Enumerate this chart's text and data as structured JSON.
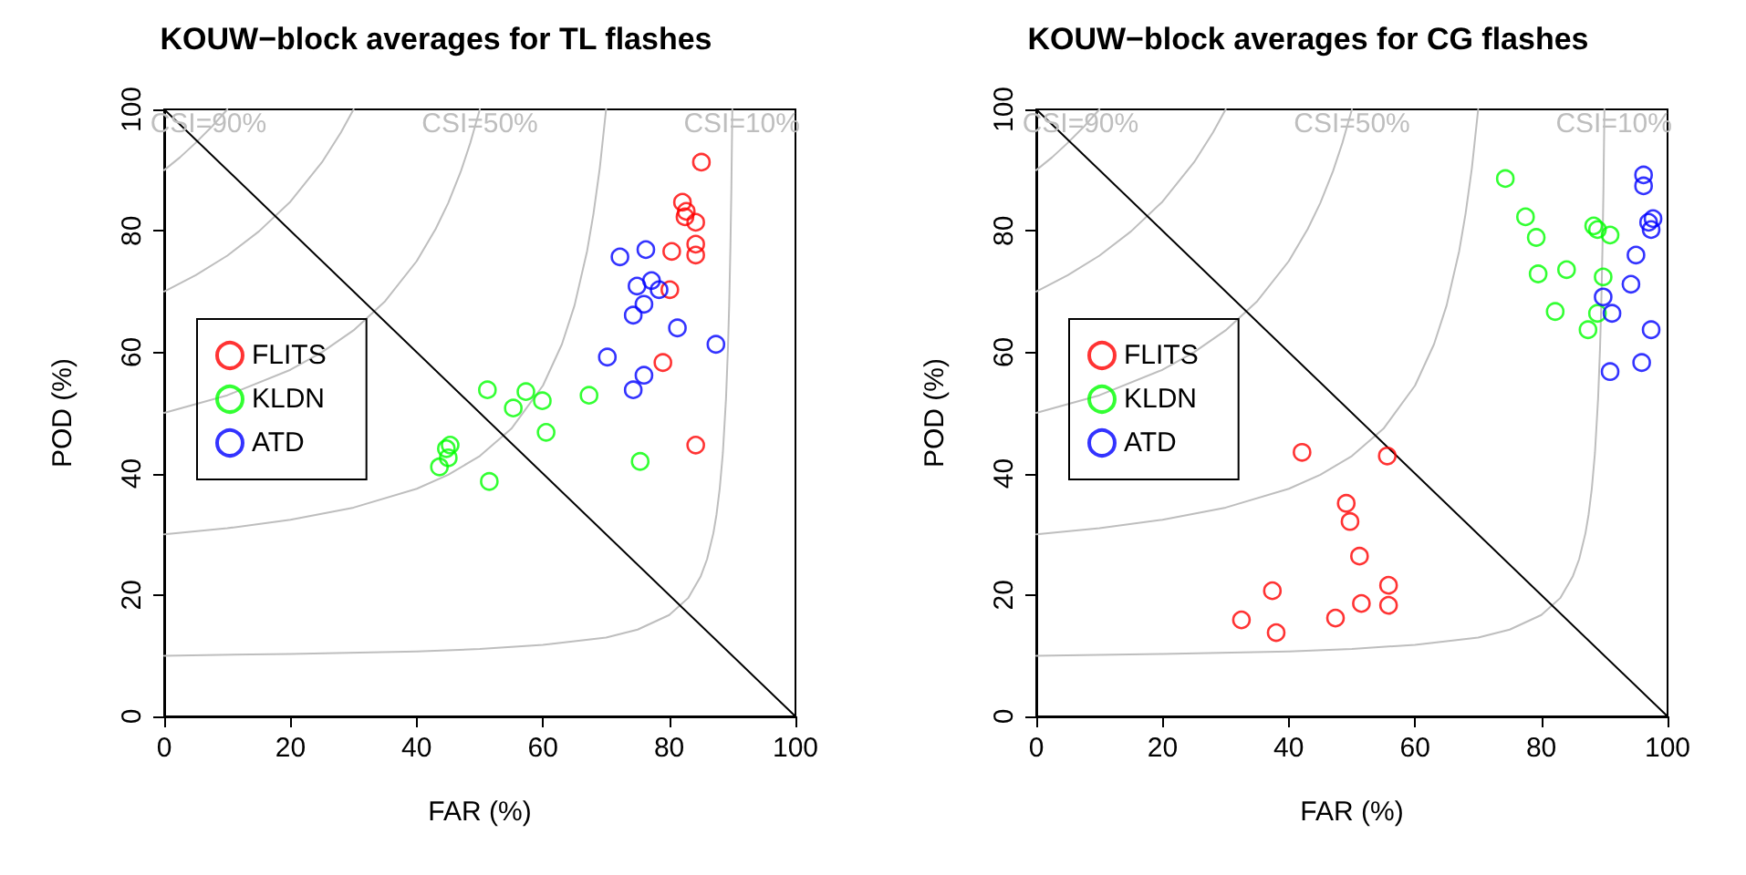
{
  "chart_data": [
    {
      "type": "scatter",
      "title": "KOUW−block averages for TL flashes",
      "xlabel": "FAR (%)",
      "ylabel": "POD (%)",
      "xlim": [
        0,
        100
      ],
      "ylim": [
        0,
        100
      ],
      "xticks": [
        0,
        20,
        40,
        60,
        80,
        100
      ],
      "yticks": [
        0,
        20,
        40,
        60,
        80,
        100
      ],
      "grid": false,
      "legend": "left",
      "marker": "circle",
      "annotations": [
        "CSI=90%",
        "CSI=50%",
        "CSI=10%"
      ],
      "series": [
        {
          "type": "line",
          "marker": "none",
          "color": "#bebebe",
          "x": [
            0,
            2.5,
            5,
            7.5,
            10
          ],
          "values": [
            90,
            92.1,
            94.5,
            97.1,
            100
          ]
        },
        {
          "type": "line",
          "marker": "none",
          "color": "#bebebe",
          "x": [
            0,
            5,
            10,
            15,
            20,
            25,
            28,
            30
          ],
          "values": [
            70,
            72.7,
            75.9,
            79.9,
            84.8,
            91.3,
            96.2,
            100
          ]
        },
        {
          "type": "line",
          "marker": "none",
          "color": "#bebebe",
          "x": [
            0,
            10,
            20,
            25,
            30,
            35,
            40,
            43,
            45,
            47,
            48.5,
            50
          ],
          "values": [
            50,
            52.9,
            57.1,
            60,
            63.6,
            68.4,
            75,
            80.3,
            84.6,
            89.8,
            94.5,
            100
          ]
        },
        {
          "type": "line",
          "marker": "none",
          "color": "#bebebe",
          "x": [
            0,
            10,
            20,
            30,
            40,
            45,
            50,
            55,
            60,
            63,
            65,
            67,
            68,
            69,
            70
          ],
          "values": [
            30,
            31,
            32.4,
            34.4,
            37.5,
            39.8,
            42.9,
            47.4,
            54.5,
            61.3,
            67.7,
            76.7,
            82.8,
            90.3,
            100
          ]
        },
        {
          "type": "line",
          "marker": "none",
          "color": "#bebebe",
          "x": [
            0,
            20,
            40,
            50,
            60,
            70,
            75,
            80,
            83,
            85,
            86,
            87,
            87.5,
            88,
            88.5,
            89,
            89.3,
            89.5,
            89.7,
            89.85,
            90
          ],
          "values": [
            10,
            10.3,
            10.7,
            11.1,
            11.8,
            13,
            14.3,
            16.7,
            19.5,
            23.1,
            25.9,
            30.2,
            33.3,
            37.5,
            43.4,
            52.4,
            60.5,
            67.7,
            77.5,
            87.1,
            100
          ]
        },
        {
          "type": "line",
          "marker": "none",
          "color": "#000000",
          "x": [
            0,
            100
          ],
          "values": [
            100,
            0
          ]
        },
        {
          "name": "FLITS",
          "color": "#ff0000",
          "x": [
            85.1,
            82.1,
            82.7,
            82.5,
            84.2,
            84.2,
            84.2,
            80.4,
            80.1,
            79,
            84.2
          ],
          "values": [
            91.3,
            84.7,
            83.2,
            82.3,
            81.4,
            77.8,
            76,
            76.6,
            70.3,
            58.3,
            44.7
          ]
        },
        {
          "name": "KLDN",
          "color": "#00ff00",
          "x": [
            51.2,
            57.3,
            55.3,
            59.9,
            67.3,
            60.5,
            45.3,
            44.7,
            45,
            43.6,
            51.5,
            75.4
          ],
          "values": [
            53.8,
            53.5,
            50.8,
            52,
            52.9,
            46.8,
            44.7,
            44.1,
            42.6,
            41.1,
            38.7,
            42
          ]
        },
        {
          "name": "ATD",
          "color": "#0000ff",
          "x": [
            72.2,
            76.3,
            74.9,
            77.2,
            78.4,
            76,
            74.3,
            81.3,
            87.4,
            70.2,
            76,
            74.3
          ],
          "values": [
            75.7,
            76.9,
            70.9,
            71.8,
            70.3,
            67.9,
            66.1,
            64,
            61.3,
            59.2,
            56.2,
            53.8
          ]
        }
      ]
    },
    {
      "type": "scatter",
      "title": "KOUW−block averages for CG flashes",
      "xlabel": "FAR (%)",
      "ylabel": "POD (%)",
      "xlim": [
        0,
        100
      ],
      "ylim": [
        0,
        100
      ],
      "xticks": [
        0,
        20,
        40,
        60,
        80,
        100
      ],
      "yticks": [
        0,
        20,
        40,
        60,
        80,
        100
      ],
      "grid": false,
      "legend": "left",
      "marker": "circle",
      "annotations": [
        "CSI=90%",
        "CSI=50%",
        "CSI=10%"
      ],
      "series": [
        {
          "type": "line",
          "marker": "none",
          "color": "#bebebe",
          "x": [
            0,
            2.5,
            5,
            7.5,
            10
          ],
          "values": [
            90,
            92.1,
            94.5,
            97.1,
            100
          ]
        },
        {
          "type": "line",
          "marker": "none",
          "color": "#bebebe",
          "x": [
            0,
            5,
            10,
            15,
            20,
            25,
            28,
            30
          ],
          "values": [
            70,
            72.7,
            75.9,
            79.9,
            84.8,
            91.3,
            96.2,
            100
          ]
        },
        {
          "type": "line",
          "marker": "none",
          "color": "#bebebe",
          "x": [
            0,
            10,
            20,
            25,
            30,
            35,
            40,
            43,
            45,
            47,
            48.5,
            50
          ],
          "values": [
            50,
            52.9,
            57.1,
            60,
            63.6,
            68.4,
            75,
            80.3,
            84.6,
            89.8,
            94.5,
            100
          ]
        },
        {
          "type": "line",
          "marker": "none",
          "color": "#bebebe",
          "x": [
            0,
            10,
            20,
            30,
            40,
            45,
            50,
            55,
            60,
            63,
            65,
            67,
            68,
            69,
            70
          ],
          "values": [
            30,
            31,
            32.4,
            34.4,
            37.5,
            39.8,
            42.9,
            47.4,
            54.5,
            61.3,
            67.7,
            76.7,
            82.8,
            90.3,
            100
          ]
        },
        {
          "type": "line",
          "marker": "none",
          "color": "#bebebe",
          "x": [
            0,
            20,
            40,
            50,
            60,
            70,
            75,
            80,
            83,
            85,
            86,
            87,
            87.5,
            88,
            88.5,
            89,
            89.3,
            89.5,
            89.7,
            89.85,
            90
          ],
          "values": [
            10,
            10.3,
            10.7,
            11.1,
            11.8,
            13,
            14.3,
            16.7,
            19.5,
            23.1,
            25.9,
            30.2,
            33.3,
            37.5,
            43.4,
            52.4,
            60.5,
            67.7,
            77.5,
            87.1,
            100
          ]
        },
        {
          "type": "line",
          "marker": "none",
          "color": "#000000",
          "x": [
            0,
            100
          ],
          "values": [
            100,
            0
          ]
        },
        {
          "name": "FLITS",
          "color": "#ff0000",
          "x": [
            42.1,
            55.6,
            49.1,
            49.7,
            51.2,
            37.4,
            55.8,
            55.8,
            51.5,
            47.4,
            32.5,
            38
          ],
          "values": [
            43.5,
            42.9,
            35.1,
            32.1,
            26.4,
            20.7,
            21.6,
            18.3,
            18.6,
            16.2,
            15.9,
            13.8
          ]
        },
        {
          "name": "KLDN",
          "color": "#00ff00",
          "x": [
            74.3,
            77.5,
            79.2,
            88.3,
            88.9,
            90.9,
            79.5,
            84,
            89.8,
            82.2,
            88.9,
            87.4
          ],
          "values": [
            88.6,
            82.3,
            78.9,
            80.8,
            80.2,
            79.3,
            72.9,
            73.6,
            72.4,
            66.7,
            66.4,
            63.7
          ]
        },
        {
          "name": "ATD",
          "color": "#0000ff",
          "x": [
            96.2,
            96.2,
            97.7,
            97,
            97.4,
            95,
            94.2,
            89.8,
            91.2,
            97.4,
            95.9,
            90.9
          ],
          "values": [
            89.2,
            87.4,
            82,
            81.4,
            80.2,
            76,
            71.2,
            69.1,
            66.4,
            63.7,
            58.3,
            56.8
          ]
        }
      ]
    }
  ]
}
